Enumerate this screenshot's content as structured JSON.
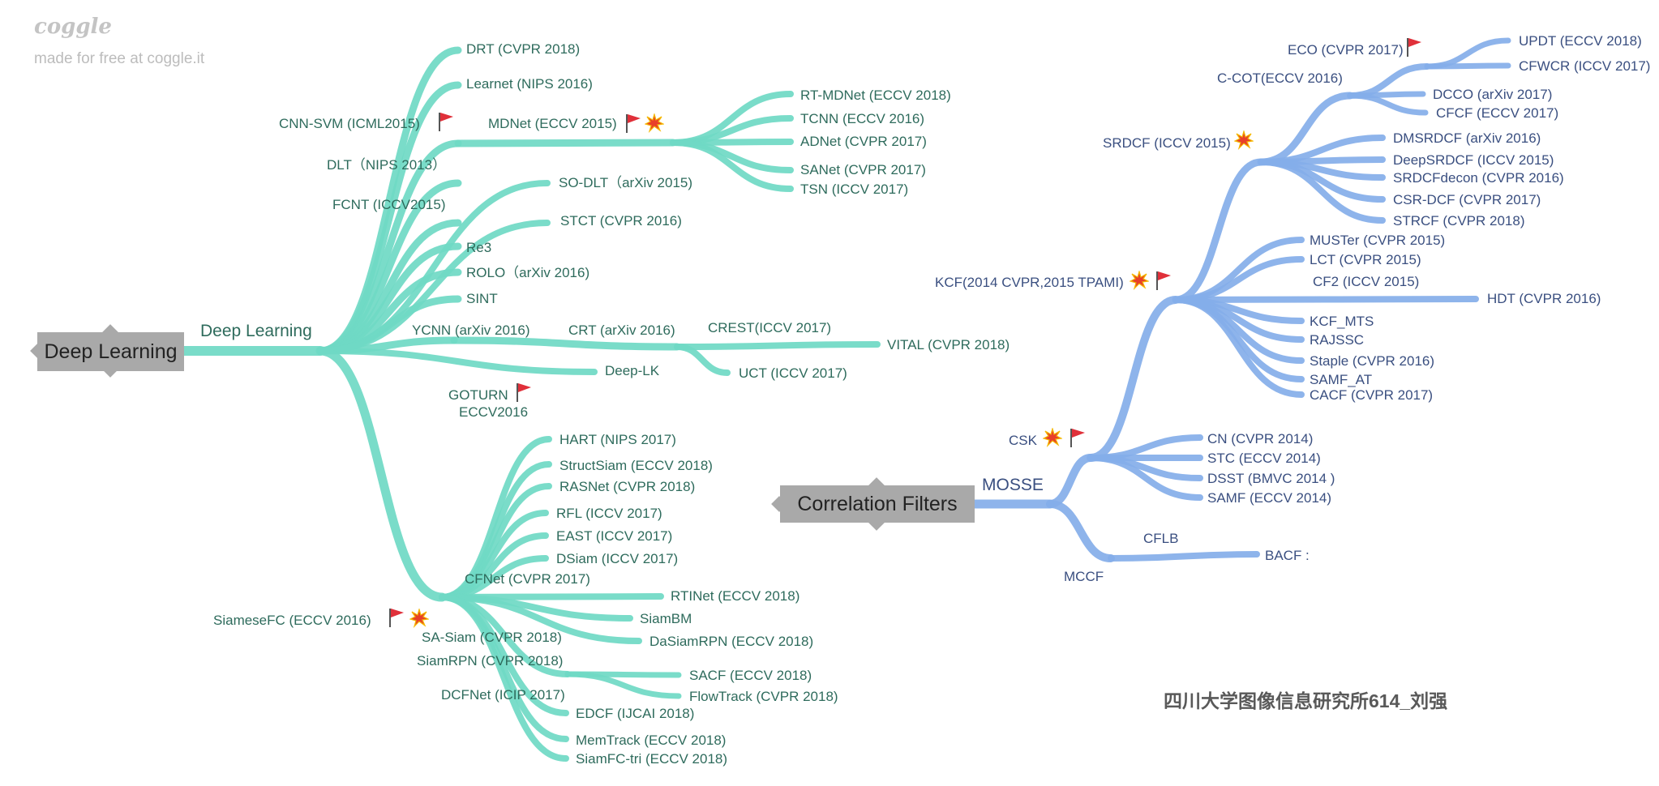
{
  "branding": {
    "logo_text": "coggle",
    "subtitle": "made for free at coggle.it"
  },
  "credit": "四川大学图像信息研究所614_刘强",
  "colors": {
    "deep_learning_branch": "#6fd9c4",
    "correlation_filters_branch": "#84aee9",
    "root_box": "#a9a9a9",
    "flag": "#e0303a",
    "burst": "#e8402a"
  },
  "icons": {
    "flag": "red-flag-icon",
    "burst": "explosion-icon"
  },
  "deep_learning": {
    "root": "Deep Learning",
    "branch": "Deep Learning",
    "nodes": {
      "drt": "DRT (CVPR 2018)",
      "learnet": "Learnet (NIPS 2016)",
      "cnn_svm": "CNN-SVM (ICML2015)",
      "mdnet": "MDNet (ECCV 2015)",
      "dlt": "DLT（NIPS 2013）",
      "fcnt": "FCNT (ICCV2015)",
      "so_dlt": "SO-DLT（arXiv 2015)",
      "stct": "STCT (CVPR 2016)",
      "re3": "Re3",
      "rolo": "ROLO（arXiv 2016)",
      "sint": "SINT",
      "ycnn": "YCNN (arXiv 2016)",
      "crt": "CRT (arXiv 2016)",
      "crest": "CREST(ICCV 2017)",
      "vital": "VITAL (CVPR 2018)",
      "uct": "UCT (ICCV 2017)",
      "deep_lk": "Deep-LK",
      "goturn": "GOTURN",
      "goturn_venue": "ECCV2016",
      "rt_mdnet": "RT-MDNet (ECCV 2018)",
      "tcnn": "TCNN (ECCV 2016)",
      "adnet": "ADNet (CVPR 2017)",
      "sanet": "SANet (CVPR 2017)",
      "tsn": "TSN (ICCV 2017)",
      "hart": "HART (NIPS 2017)",
      "structsiam": "StructSiam (ECCV 2018)",
      "rasnet": "RASNet (CVPR 2018)",
      "rfl": "RFL (ICCV 2017)",
      "east": "EAST (ICCV 2017)",
      "dsiam": "DSiam (ICCV 2017)",
      "cfnet": "CFNet (CVPR 2017)",
      "rtinet": "RTINet (ECCV 2018)",
      "siambm": "SiamBM",
      "siamesefc": "SiameseFC (ECCV 2016)",
      "sa_siam": "SA-Siam (CVPR 2018)",
      "dasiamrpn": "DaSiamRPN (ECCV 2018)",
      "siamrpn": "SiamRPN (CVPR 2018)",
      "sacf": "SACF (ECCV 2018)",
      "flowtrack": "FlowTrack (CVPR 2018)",
      "dcfnet": "DCFNet (ICIP 2017)",
      "edcf": "EDCF (IJCAI 2018)",
      "memtrack": "MemTrack (ECCV 2018)",
      "siamfc_tri": "SiamFC-tri (ECCV 2018)"
    }
  },
  "correlation_filters": {
    "root": "Correlation Filters",
    "branch": "MOSSE",
    "nodes": {
      "eco": "ECO (CVPR 2017)",
      "updt": "UPDT (ECCV 2018)",
      "cfwcr": "CFWCR (ICCV 2017)",
      "ccot": "C-COT(ECCV 2016)",
      "dcco": "DCCO (arXiv 2017)",
      "cfcf": "CFCF (ECCV 2017)",
      "srdcf": "SRDCF (ICCV 2015)",
      "dmsrdcf": "DMSRDCF (arXiv 2016)",
      "deepsrdcf": "DeepSRDCF (ICCV 2015)",
      "srdcfdecon": "SRDCFdecon (CVPR 2016)",
      "csr_dcf": "CSR-DCF (CVPR 2017)",
      "strcf": "STRCF (CVPR 2018)",
      "muster": "MUSTer (CVPR 2015)",
      "lct": "LCT (CVPR 2015)",
      "kcf": "KCF(2014 CVPR,2015 TPAMI)",
      "cf2": "CF2 (ICCV 2015)",
      "hdt": "HDT (CVPR 2016)",
      "kcf_mts": "KCF_MTS",
      "rajssc": "RAJSSC",
      "staple": "Staple (CVPR 2016)",
      "samf_at": "SAMF_AT",
      "cacf": "CACF (CVPR 2017)",
      "csk": "CSK",
      "cn": "CN (CVPR 2014)",
      "stc": "STC (ECCV 2014)",
      "dsst": "DSST (BMVC 2014 )",
      "samf": "SAMF (ECCV 2014)",
      "cflb": "CFLB",
      "bacf": "BACF :",
      "mccf": "MCCF"
    }
  }
}
